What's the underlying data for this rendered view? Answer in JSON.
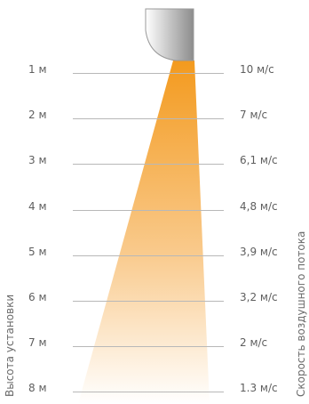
{
  "axis_left_label": "Высота установки",
  "axis_right_label": "Скорость воздушного потока",
  "rows": [
    {
      "height": "1 м",
      "speed": "10 м/с"
    },
    {
      "height": "2 м",
      "speed": "7 м/с"
    },
    {
      "height": "3 м",
      "speed": "6,1 м/с"
    },
    {
      "height": "4 м",
      "speed": "4,8 м/с"
    },
    {
      "height": "5 м",
      "speed": "3,9 м/с"
    },
    {
      "height": "6 м",
      "speed": "3,2 м/с"
    },
    {
      "height": "7 м",
      "speed": "2 м/с"
    },
    {
      "height": "8 м",
      "speed": "1.3 м/с"
    }
  ],
  "colors": {
    "jet_top": "#f39a1e",
    "jet_bottom": "#ffffff",
    "line": "#b8b8b8",
    "text": "#5e5e5e",
    "unit_body_light": "#ffffff",
    "unit_body_dark": "#8c8c8c"
  }
}
